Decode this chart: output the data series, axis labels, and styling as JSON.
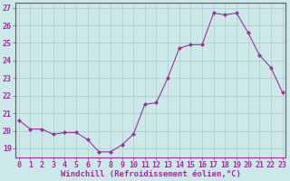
{
  "x": [
    0,
    1,
    2,
    3,
    4,
    5,
    6,
    7,
    8,
    9,
    10,
    11,
    12,
    13,
    14,
    15,
    16,
    17,
    18,
    19,
    20,
    21,
    22,
    23
  ],
  "y": [
    20.6,
    20.1,
    20.1,
    19.8,
    19.9,
    19.9,
    19.5,
    18.8,
    18.8,
    19.2,
    19.8,
    21.5,
    21.6,
    23.0,
    24.7,
    24.9,
    24.9,
    26.7,
    26.6,
    26.7,
    25.6,
    24.3,
    23.6,
    22.2
  ],
  "line_color": "#993399",
  "marker": "D",
  "marker_size": 2.0,
  "bg_color": "#cce8e8",
  "grid_color": "#aacccc",
  "axis_color": "#993399",
  "xlabel": "Windchill (Refroidissement éolien,°C)",
  "xlabel_fontsize": 6.5,
  "tick_fontsize": 6.0,
  "ylim": [
    18.5,
    27.3
  ],
  "yticks": [
    19,
    20,
    21,
    22,
    23,
    24,
    25,
    26,
    27
  ],
  "xlim": [
    -0.3,
    23.3
  ],
  "xticks": [
    0,
    1,
    2,
    3,
    4,
    5,
    6,
    7,
    8,
    9,
    10,
    11,
    12,
    13,
    14,
    15,
    16,
    17,
    18,
    19,
    20,
    21,
    22,
    23
  ]
}
